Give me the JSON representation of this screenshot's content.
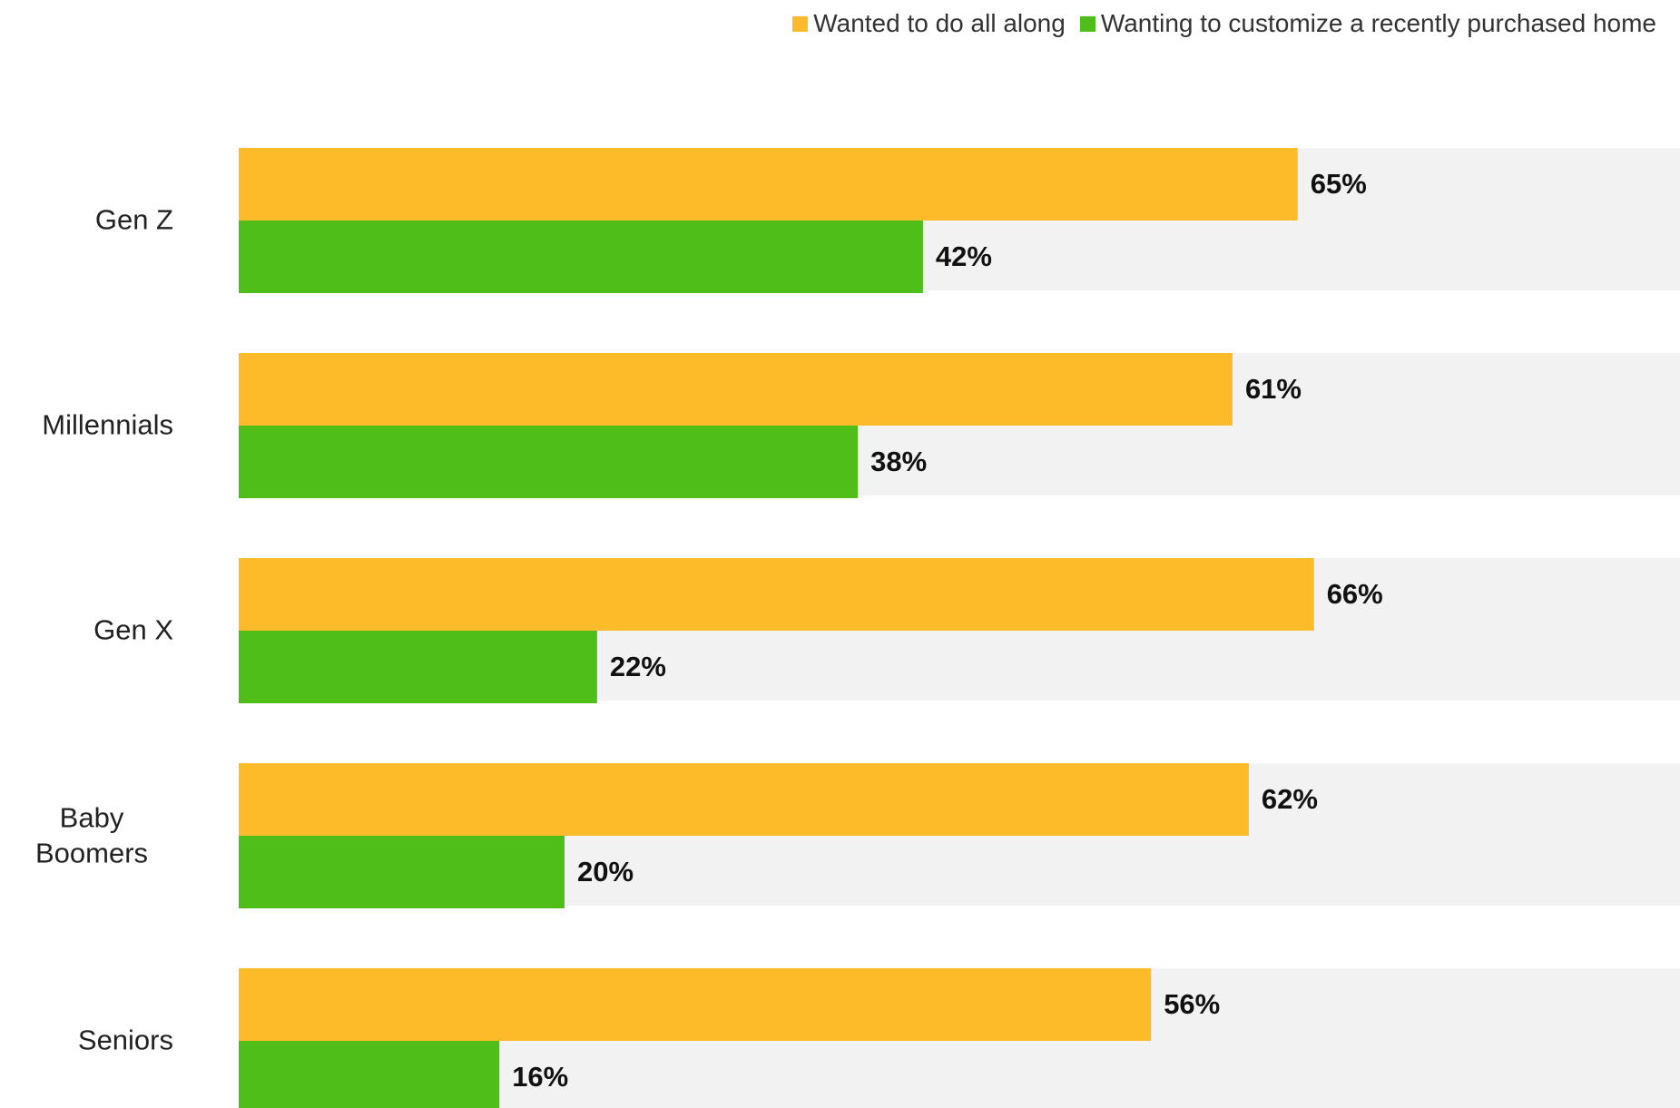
{
  "chart_data": {
    "type": "bar",
    "orientation": "horizontal",
    "categories": [
      "Gen Z",
      "Millennials",
      "Gen X",
      "Baby Boomers",
      "Seniors"
    ],
    "series": [
      {
        "name": "Wanted to do all along",
        "color": "#fdbb2a",
        "values": [
          65,
          61,
          66,
          62,
          56
        ],
        "value_labels": [
          "65%",
          "61%",
          "66%",
          "62%",
          "56%"
        ]
      },
      {
        "name": "Wanting to customize a recently purchased home",
        "color": "#4fbe18",
        "values": [
          42,
          38,
          22,
          20,
          16
        ],
        "value_labels": [
          "42%",
          "38%",
          "22%",
          "20%",
          "16%"
        ]
      }
    ],
    "xlim": [
      0,
      100
    ],
    "legend": "top-right"
  }
}
